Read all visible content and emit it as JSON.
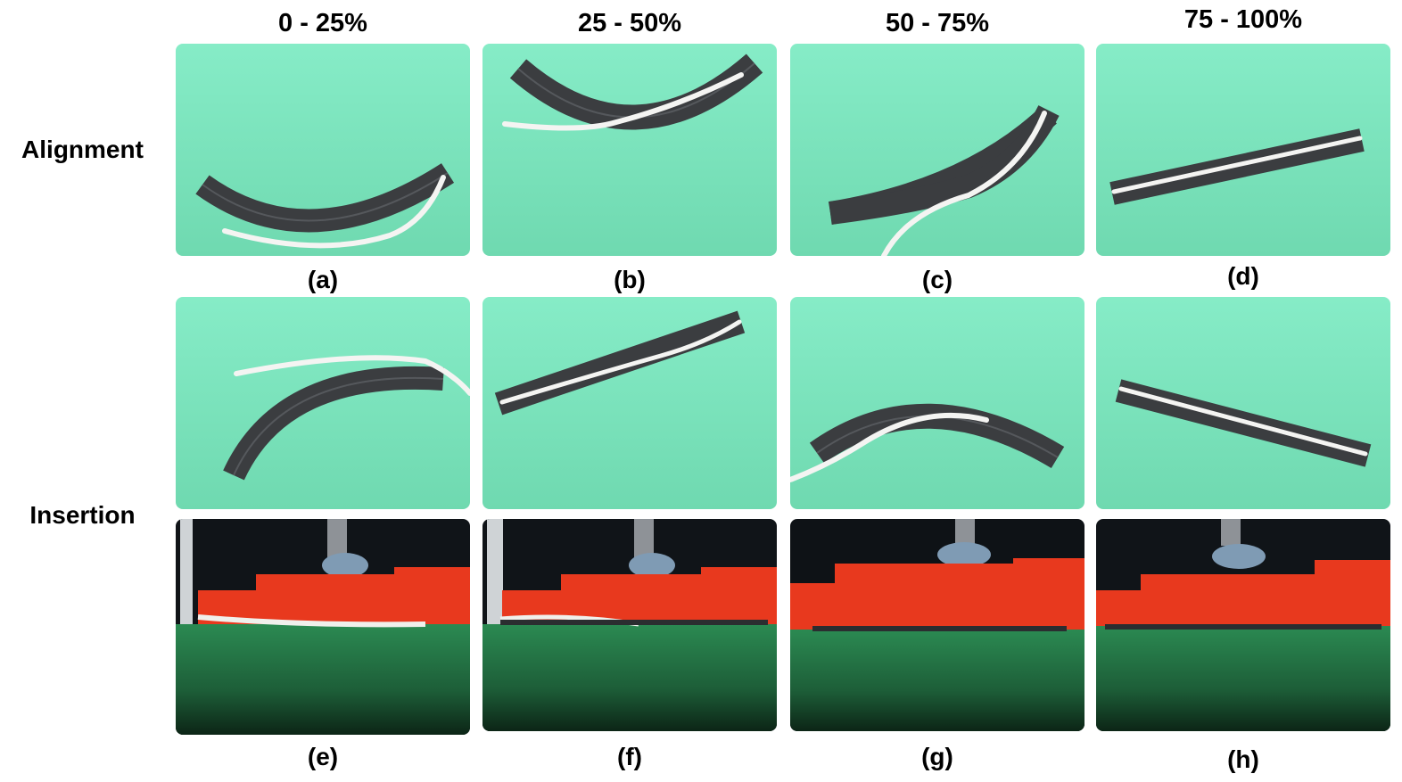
{
  "columns": [
    {
      "label": "0 - 25%"
    },
    {
      "label": "25 - 50%"
    },
    {
      "label": "50 - 75%"
    },
    {
      "label": "75 - 100%"
    }
  ],
  "rows": {
    "alignment": {
      "label": "Alignment"
    },
    "insertion": {
      "label": "Insertion"
    }
  },
  "captions": {
    "a": "(a)",
    "b": "(b)",
    "c": "(c)",
    "d": "(d)",
    "e": "(e)",
    "f": "(f)",
    "g": "(g)",
    "h": "(h)"
  },
  "colors": {
    "green_cloth": "#7fe8c0",
    "channel": "#3b3d40",
    "cable": "#f4f4f2",
    "red_wall": "#e8391e",
    "dark_green_table": "#1f6b3f"
  }
}
